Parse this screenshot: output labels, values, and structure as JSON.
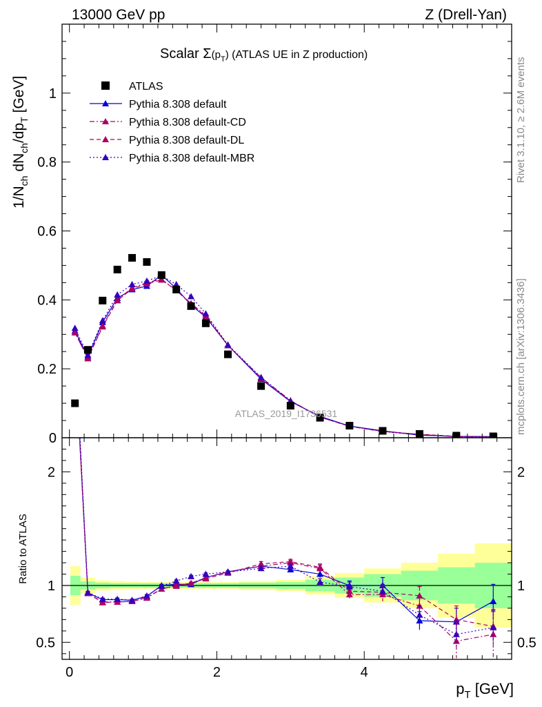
{
  "header": {
    "left": "13000 GeV pp",
    "right": "Z (Drell-Yan)",
    "side_rivet": "Rivet 3.1.10, ≥ 2.6M events",
    "side_mcplots": "mcplots.cern.ch [arXiv:1306.3436]"
  },
  "main": {
    "title_prefix": "Scalar ",
    "title_symbol": "Σ",
    "title_arg_open": "(p",
    "title_arg_sub": "T",
    "title_arg_close": ")",
    "title_suffix": " (ATLAS UE in Z production)",
    "ylabel": "1/N",
    "ylabel_sub1": "ch",
    "ylabel_mid": " dN",
    "ylabel_sub2": "ch",
    "ylabel_mid2": "/dp",
    "ylabel_sub3": "T",
    "ylabel_tail": " [GeV]",
    "watermark": "ATLAS_2019_I1736531"
  },
  "ratio": {
    "ylabel": "Ratio to ATLAS"
  },
  "xaxis": {
    "label": "p",
    "label_sub": "T",
    "label_tail": " [GeV]"
  },
  "colors": {
    "default": "#0000dd",
    "cd": "#aa0066",
    "dl": "#aa0066",
    "mbr": "#3300bb",
    "band_stat": "#99ff99",
    "band_tot": "#ffff99",
    "data": "#000000"
  },
  "chart_data": {
    "type": "scatter",
    "x": [
      0.075,
      0.25,
      0.45,
      0.65,
      0.85,
      1.05,
      1.25,
      1.45,
      1.65,
      1.85,
      2.15,
      2.6,
      3.0,
      3.4,
      3.8,
      4.25,
      4.75,
      5.25,
      5.75
    ],
    "xlim": [
      -0.1,
      6.0
    ],
    "xticks": [
      0,
      2,
      4
    ],
    "main_ylim": [
      0,
      1.2
    ],
    "main_yticks": [
      0,
      0.2,
      0.4,
      0.6,
      0.8,
      1
    ],
    "ratio_ylim": [
      0.35,
      2.3
    ],
    "ratio_yticks": [
      0.5,
      1,
      2
    ],
    "series": [
      {
        "name": "ATLAS",
        "key": "data",
        "style": "data",
        "values": [
          0.1,
          0.255,
          0.398,
          0.488,
          0.522,
          0.51,
          0.472,
          0.43,
          0.382,
          0.332,
          0.242,
          0.15,
          0.093,
          0.058,
          0.035,
          0.02,
          0.011,
          0.006,
          0.004
        ]
      },
      {
        "name": "Pythia 8.308 default",
        "key": "default",
        "style": "solid",
        "values": [
          0.31,
          0.235,
          0.335,
          0.405,
          0.43,
          0.44,
          0.472,
          0.433,
          0.385,
          0.35,
          0.268,
          0.17,
          0.105,
          0.062,
          0.034,
          0.02,
          0.0075,
          0.004,
          0.0033
        ],
        "ratio": [
          3.1,
          0.935,
          0.875,
          0.875,
          0.87,
          0.905,
          1.0,
          1.01,
          1.01,
          1.07,
          1.12,
          1.17,
          1.14,
          1.1,
          1.0,
          1.0,
          0.69,
          0.68,
          0.86
        ],
        "ratio_err": [
          0,
          0.01,
          0.01,
          0.01,
          0.01,
          0.01,
          0.01,
          0.01,
          0.01,
          0.01,
          0.01,
          0.02,
          0.02,
          0.03,
          0.04,
          0.07,
          0.08,
          0.12,
          0.15
        ]
      },
      {
        "name": "Pythia 8.308 default-CD",
        "key": "cd",
        "style": "dashdot",
        "values": [
          0.305,
          0.23,
          0.325,
          0.4,
          0.435,
          0.45,
          0.46,
          0.428,
          0.39,
          0.355,
          0.268,
          0.175,
          0.108,
          0.06,
          0.033,
          0.019,
          0.0095,
          0.003,
          0.0024
        ],
        "ratio": [
          3.05,
          0.93,
          0.855,
          0.855,
          0.86,
          0.89,
          0.97,
          0.995,
          1.02,
          1.07,
          1.12,
          1.17,
          1.2,
          1.15,
          0.92,
          0.92,
          0.82,
          0.51,
          0.57
        ],
        "ratio_err": [
          0,
          0.01,
          0.01,
          0.01,
          0.01,
          0.01,
          0.01,
          0.01,
          0.01,
          0.01,
          0.01,
          0.02,
          0.02,
          0.03,
          0.04,
          0.06,
          0.08,
          0.15,
          0.2
        ]
      },
      {
        "name": "Pythia 8.308 default-DL",
        "key": "dl",
        "style": "dashed",
        "values": [
          0.305,
          0.23,
          0.322,
          0.398,
          0.432,
          0.447,
          0.458,
          0.428,
          0.387,
          0.352,
          0.268,
          0.172,
          0.106,
          0.06,
          0.033,
          0.018,
          0.01,
          0.0042,
          0.0026
        ],
        "ratio": [
          3.05,
          0.93,
          0.85,
          0.855,
          0.86,
          0.895,
          0.97,
          1.0,
          1.02,
          1.06,
          1.11,
          1.19,
          1.21,
          1.16,
          0.95,
          0.94,
          0.91,
          0.7,
          0.64
        ],
        "ratio_err": [
          0,
          0.01,
          0.01,
          0.01,
          0.01,
          0.01,
          0.01,
          0.01,
          0.01,
          0.01,
          0.01,
          0.02,
          0.02,
          0.03,
          0.04,
          0.06,
          0.08,
          0.12,
          0.15
        ]
      },
      {
        "name": "Pythia 8.308 default-MBR",
        "key": "mbr",
        "style": "dotted",
        "values": [
          0.318,
          0.24,
          0.34,
          0.415,
          0.445,
          0.455,
          0.47,
          0.445,
          0.41,
          0.36,
          0.27,
          0.175,
          0.107,
          0.06,
          0.034,
          0.018,
          0.008,
          0.0034,
          0.0025
        ],
        "ratio": [
          3.18,
          0.94,
          0.88,
          0.88,
          0.87,
          0.91,
          0.995,
          1.04,
          1.08,
          1.1,
          1.12,
          1.15,
          1.17,
          1.03,
          0.99,
          0.95,
          0.74,
          0.57,
          0.63
        ],
        "ratio_err": [
          0,
          0.01,
          0.01,
          0.01,
          0.01,
          0.01,
          0.01,
          0.01,
          0.01,
          0.01,
          0.01,
          0.02,
          0.02,
          0.03,
          0.04,
          0.06,
          0.08,
          0.12,
          0.15
        ]
      }
    ],
    "bins": [
      {
        "lo": -0.1,
        "hi": 0.15,
        "stat": 0.085,
        "tot": 0.17
      },
      {
        "lo": 0.15,
        "hi": 0.35,
        "stat": 0.035,
        "tot": 0.07
      },
      {
        "lo": 0.35,
        "hi": 0.55,
        "stat": 0.025,
        "tot": 0.045
      },
      {
        "lo": 0.55,
        "hi": 0.75,
        "stat": 0.02,
        "tot": 0.04
      },
      {
        "lo": 0.75,
        "hi": 0.95,
        "stat": 0.02,
        "tot": 0.035
      },
      {
        "lo": 0.95,
        "hi": 1.15,
        "stat": 0.02,
        "tot": 0.03
      },
      {
        "lo": 1.15,
        "hi": 1.35,
        "stat": 0.02,
        "tot": 0.03
      },
      {
        "lo": 1.35,
        "hi": 1.55,
        "stat": 0.02,
        "tot": 0.03
      },
      {
        "lo": 1.55,
        "hi": 1.75,
        "stat": 0.02,
        "tot": 0.03
      },
      {
        "lo": 1.75,
        "hi": 2.0,
        "stat": 0.02,
        "tot": 0.03
      },
      {
        "lo": 2.0,
        "hi": 2.3,
        "stat": 0.02,
        "tot": 0.03
      },
      {
        "lo": 2.3,
        "hi": 2.8,
        "stat": 0.025,
        "tot": 0.04
      },
      {
        "lo": 2.8,
        "hi": 3.2,
        "stat": 0.03,
        "tot": 0.05
      },
      {
        "lo": 3.2,
        "hi": 3.6,
        "stat": 0.05,
        "tot": 0.08
      },
      {
        "lo": 3.6,
        "hi": 4.0,
        "stat": 0.07,
        "tot": 0.11
      },
      {
        "lo": 4.0,
        "hi": 4.5,
        "stat": 0.1,
        "tot": 0.15
      },
      {
        "lo": 4.5,
        "hi": 5.0,
        "stat": 0.13,
        "tot": 0.2
      },
      {
        "lo": 5.0,
        "hi": 5.5,
        "stat": 0.16,
        "tot": 0.28
      },
      {
        "lo": 5.5,
        "hi": 6.0,
        "stat": 0.2,
        "tot": 0.37
      }
    ]
  }
}
